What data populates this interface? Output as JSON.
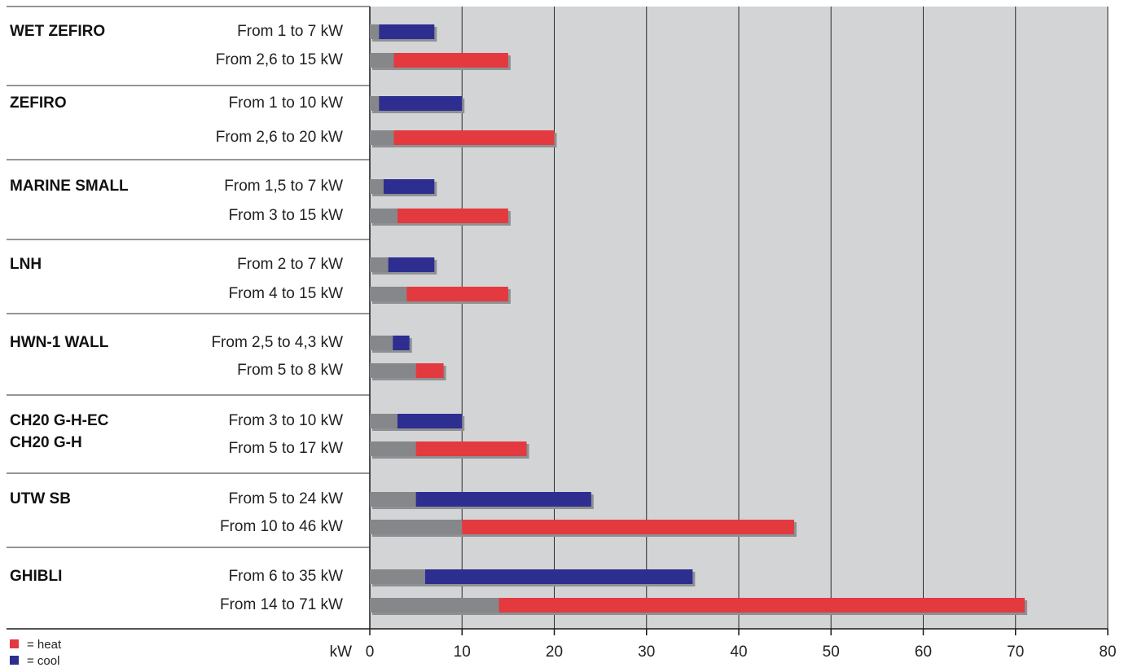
{
  "chart_data": {
    "type": "bar",
    "orientation": "horizontal",
    "xlabel": "kW",
    "xlim": [
      0,
      80
    ],
    "xticks": [
      0,
      10,
      20,
      30,
      40,
      50,
      60,
      70,
      80
    ],
    "grid": true,
    "legend": {
      "position": "bottom-left",
      "entries": [
        {
          "key": "heat",
          "label": "= heat"
        },
        {
          "key": "cool",
          "label": "= cool"
        }
      ]
    },
    "colors": {
      "heat": "#e23a3f",
      "cool": "#2d2e8f",
      "base": "#86878a",
      "shadow": "#8f9093",
      "plot_bg": "#d3d4d6"
    },
    "products": [
      {
        "name": [
          "WET ZEFIRO"
        ],
        "cool": {
          "label": "From 1 to 7 kW",
          "min": 1,
          "max": 7
        },
        "heat": {
          "label": "From 2,6 to 15 kW",
          "min": 2.6,
          "max": 15
        }
      },
      {
        "name": [
          "ZEFIRO"
        ],
        "cool": {
          "label": "From 1 to 10 kW",
          "min": 1,
          "max": 10
        },
        "heat": {
          "label": "From 2,6 to 20 kW",
          "min": 2.6,
          "max": 20
        }
      },
      {
        "name": [
          "MARINE SMALL"
        ],
        "cool": {
          "label": "From 1,5 to 7 kW",
          "min": 1.5,
          "max": 7
        },
        "heat": {
          "label": "From 3 to 15 kW",
          "min": 3,
          "max": 15
        }
      },
      {
        "name": [
          "LNH"
        ],
        "cool": {
          "label": "From 2 to 7 kW",
          "min": 2,
          "max": 7
        },
        "heat": {
          "label": "From 4 to 15 kW",
          "min": 4,
          "max": 15
        }
      },
      {
        "name": [
          "HWN-1 WALL"
        ],
        "cool": {
          "label": "From 2,5 to 4,3 kW",
          "min": 2.5,
          "max": 4.3
        },
        "heat": {
          "label": "From 5 to 8 kW",
          "min": 5,
          "max": 8
        }
      },
      {
        "name": [
          "CH20 G-H-EC",
          "CH20 G-H"
        ],
        "cool": {
          "label": "From 3 to 10 kW",
          "min": 3,
          "max": 10
        },
        "heat": {
          "label": "From 5 to 17 kW",
          "min": 5,
          "max": 17
        }
      },
      {
        "name": [
          "UTW SB"
        ],
        "cool": {
          "label": "From 5 to 24 kW",
          "min": 5,
          "max": 24
        },
        "heat": {
          "label": "From 10 to 46 kW",
          "min": 10,
          "max": 46
        }
      },
      {
        "name": [
          "GHIBLI"
        ],
        "cool": {
          "label": "From 6 to 35 kW",
          "min": 6,
          "max": 35
        },
        "heat": {
          "label": "From 14 to 71 kW",
          "min": 14,
          "max": 71
        }
      }
    ]
  }
}
